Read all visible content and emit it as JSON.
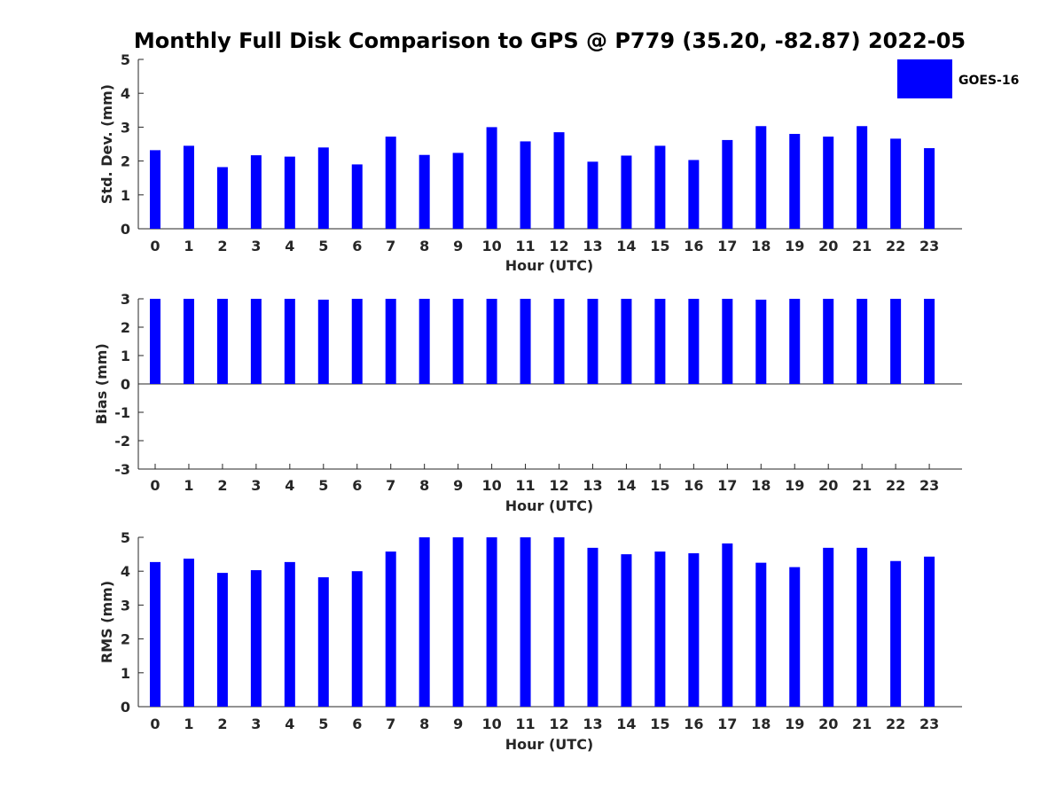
{
  "chart_data": {
    "type": "bar",
    "title": "Monthly Full Disk Comparison to GPS @ P779 (35.20, -82.87) 2022-05",
    "legend": {
      "entries": [
        "GOES-16"
      ],
      "placement": "top-right",
      "color": "#0000ff"
    },
    "bar_color": "#0000ff",
    "panels": [
      {
        "id": "std",
        "ylabel": "Std. Dev. (mm)",
        "xlabel": "Hour (UTC)",
        "ylim": [
          0,
          5
        ],
        "yticks": [
          "0",
          "1",
          "2",
          "3",
          "4",
          "5"
        ],
        "categories": [
          "0",
          "1",
          "2",
          "3",
          "4",
          "5",
          "6",
          "7",
          "8",
          "9",
          "10",
          "11",
          "12",
          "13",
          "14",
          "15",
          "16",
          "17",
          "18",
          "19",
          "20",
          "21",
          "22",
          "23"
        ],
        "series": [
          {
            "name": "GOES-16",
            "values": [
              2.32,
              2.45,
              1.82,
              2.17,
              2.13,
              2.4,
              1.9,
              2.72,
              2.18,
              2.24,
              3.0,
              2.58,
              2.85,
              1.98,
              2.16,
              2.45,
              2.03,
              2.62,
              3.03,
              2.8,
              2.72,
              3.03,
              2.66,
              2.38
            ]
          }
        ]
      },
      {
        "id": "bias",
        "ylabel": "Bias (mm)",
        "xlabel": "Hour (UTC)",
        "ylim": [
          -3,
          3
        ],
        "yticks": [
          "-3",
          "-2",
          "-1",
          "0",
          "1",
          "2",
          "3"
        ],
        "categories": [
          "0",
          "1",
          "2",
          "3",
          "4",
          "5",
          "6",
          "7",
          "8",
          "9",
          "10",
          "11",
          "12",
          "13",
          "14",
          "15",
          "16",
          "17",
          "18",
          "19",
          "20",
          "21",
          "22",
          "23"
        ],
        "series": [
          {
            "name": "GOES-16",
            "values": [
              3.0,
              3.0,
              3.0,
              3.0,
              3.0,
              2.97,
              3.0,
              3.0,
              3.0,
              3.0,
              3.0,
              3.0,
              3.0,
              3.0,
              3.0,
              3.0,
              3.0,
              3.0,
              2.97,
              3.0,
              3.0,
              3.0,
              3.0,
              3.0
            ]
          }
        ]
      },
      {
        "id": "rms",
        "ylabel": "RMS (mm)",
        "xlabel": "Hour (UTC)",
        "ylim": [
          0,
          5
        ],
        "yticks": [
          "0",
          "1",
          "2",
          "3",
          "4",
          "5"
        ],
        "categories": [
          "0",
          "1",
          "2",
          "3",
          "4",
          "5",
          "6",
          "7",
          "8",
          "9",
          "10",
          "11",
          "12",
          "13",
          "14",
          "15",
          "16",
          "17",
          "18",
          "19",
          "20",
          "21",
          "22",
          "23"
        ],
        "series": [
          {
            "name": "GOES-16",
            "values": [
              4.27,
              4.37,
              3.95,
              4.03,
              4.27,
              3.82,
              4.0,
              4.58,
              5.0,
              5.0,
              5.0,
              5.0,
              5.0,
              4.69,
              4.5,
              4.58,
              4.53,
              4.82,
              4.25,
              4.12,
              4.69,
              4.69,
              4.3,
              4.43
            ]
          }
        ]
      }
    ]
  }
}
